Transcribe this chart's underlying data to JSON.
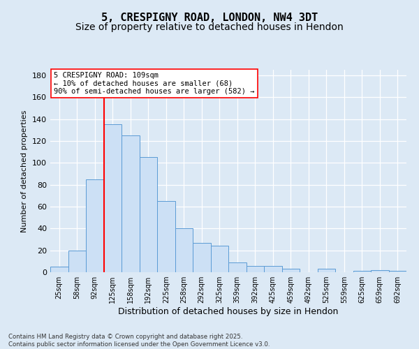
{
  "title": "5, CRESPIGNY ROAD, LONDON, NW4 3DT",
  "subtitle": "Size of property relative to detached houses in Hendon",
  "xlabel": "Distribution of detached houses by size in Hendon",
  "ylabel": "Number of detached properties",
  "footer": "Contains HM Land Registry data © Crown copyright and database right 2025.\nContains public sector information licensed under the Open Government Licence v3.0.",
  "categories": [
    "25sqm",
    "58sqm",
    "92sqm",
    "125sqm",
    "158sqm",
    "192sqm",
    "225sqm",
    "258sqm",
    "292sqm",
    "325sqm",
    "359sqm",
    "392sqm",
    "425sqm",
    "459sqm",
    "492sqm",
    "525sqm",
    "559sqm",
    "625sqm",
    "659sqm",
    "692sqm"
  ],
  "values": [
    5,
    20,
    85,
    135,
    125,
    105,
    65,
    40,
    27,
    24,
    9,
    6,
    6,
    3,
    0,
    3,
    0,
    1,
    2,
    1
  ],
  "bar_color": "#cce0f5",
  "bar_edge_color": "#5b9bd5",
  "vline_x": 2.5,
  "vline_color": "red",
  "annotation_title": "5 CRESPIGNY ROAD: 109sqm",
  "annotation_line1": "← 10% of detached houses are smaller (68)",
  "annotation_line2": "90% of semi-detached houses are larger (582) →",
  "annotation_box_color": "white",
  "annotation_box_edge": "red",
  "ylim": [
    0,
    185
  ],
  "yticks": [
    0,
    20,
    40,
    60,
    80,
    100,
    120,
    140,
    160,
    180
  ],
  "background_color": "#dce9f5",
  "plot_bg_color": "#dce9f5",
  "grid_color": "white",
  "title_fontsize": 11,
  "subtitle_fontsize": 10
}
